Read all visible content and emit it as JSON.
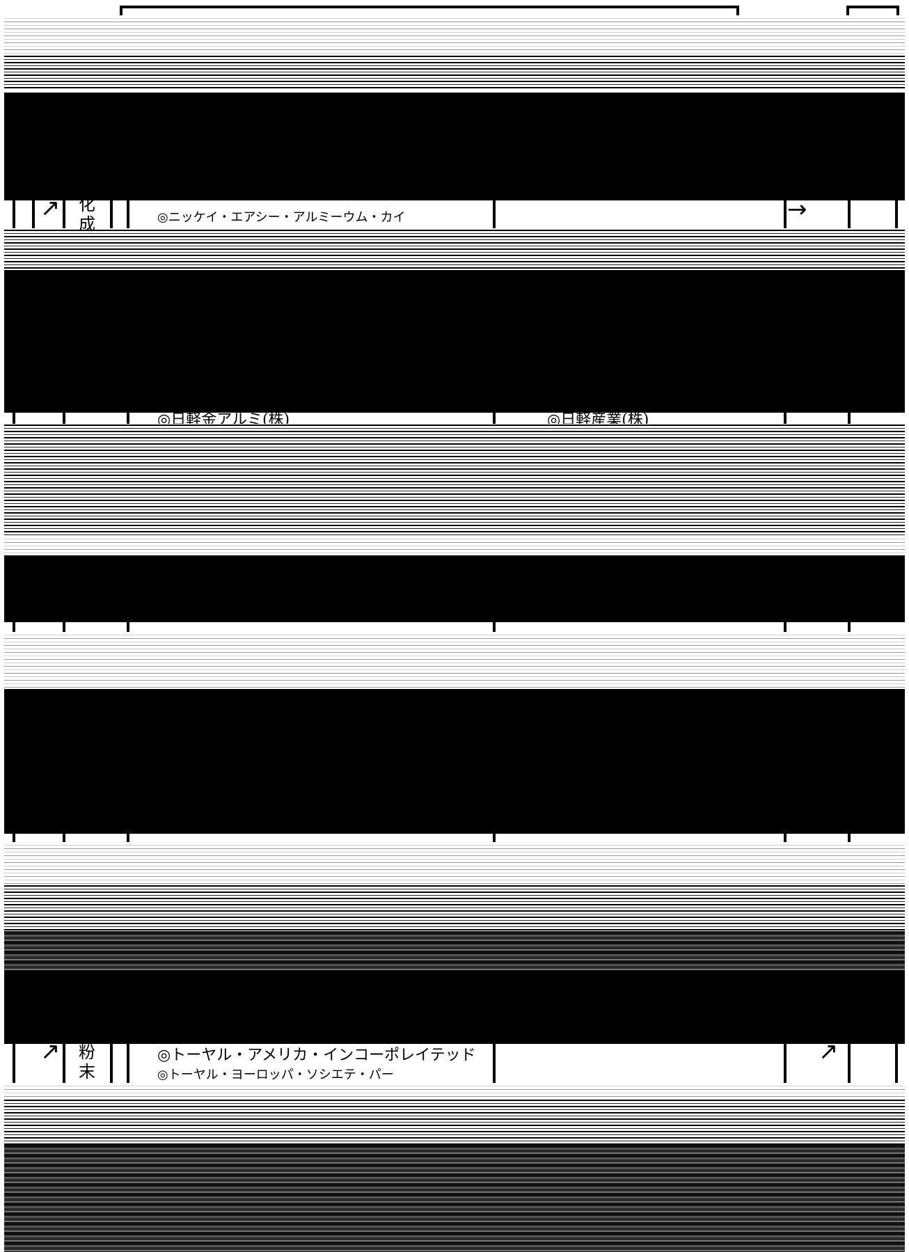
{
  "rows": [
    {
      "category": "化成",
      "entries": [
        "◎ニッケイ・エアシー・アルミーウム・カイ"
      ],
      "right_entries": []
    },
    {
      "category": "",
      "entries": [
        "◎日軽金アルミ(株)"
      ],
      "right_entries": [
        "◎日軽産業(株)"
      ]
    },
    {
      "category": "粉末",
      "entries": [
        "◎トーヤル・アメリカ・インコーポレイテッド",
        "◎トーヤル・ヨーロッパ・ソシエテ・パー"
      ],
      "right_entries": []
    }
  ],
  "icons": {
    "arrow": "→",
    "diagonal_arrow": "↗"
  }
}
